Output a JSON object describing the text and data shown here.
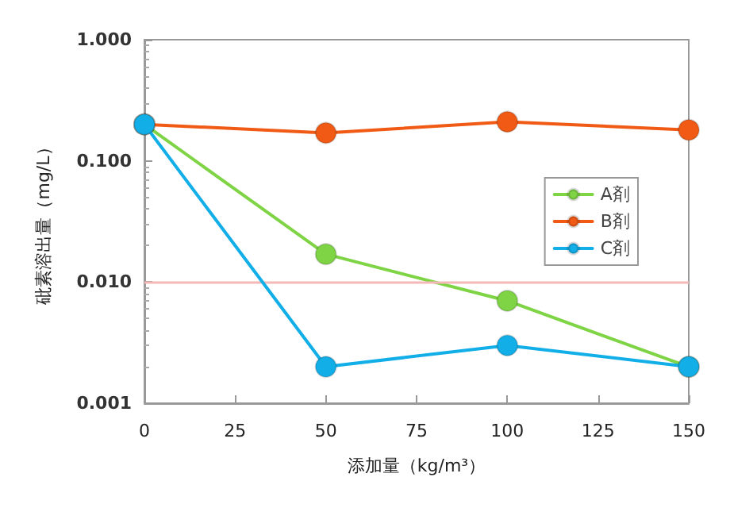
{
  "chart_data": {
    "type": "line",
    "xlabel": "添加量（kg/m³）",
    "ylabel": "砒素溶出量（mg/L）",
    "x": [
      0,
      50,
      100,
      150
    ],
    "series": [
      {
        "name": "A剤",
        "color": "#7ed444",
        "values": [
          0.2,
          0.017,
          0.007,
          0.002
        ]
      },
      {
        "name": "B剤",
        "color": "#f05a14",
        "values": [
          0.2,
          0.17,
          0.21,
          0.18
        ]
      },
      {
        "name": "C剤",
        "color": "#12aee8",
        "values": [
          0.2,
          0.002,
          0.003,
          0.002
        ]
      }
    ],
    "xlim": [
      0,
      150
    ],
    "xticks": [
      0,
      25,
      50,
      75,
      100,
      125,
      150
    ],
    "ylim": [
      0.001,
      1
    ],
    "log": true,
    "yticks": [
      {
        "value": 0.001,
        "label": "0.001"
      },
      {
        "value": 0.01,
        "label": "0.010"
      },
      {
        "value": 0.1,
        "label": "0.100"
      },
      {
        "value": 1,
        "label": "1.000"
      }
    ],
    "ref_lines": [
      {
        "axis": "y",
        "value": 0.01,
        "color": "#f4b8b8"
      }
    ],
    "grid": false,
    "legend": "right",
    "marker": "circle",
    "line_style": "solid"
  }
}
